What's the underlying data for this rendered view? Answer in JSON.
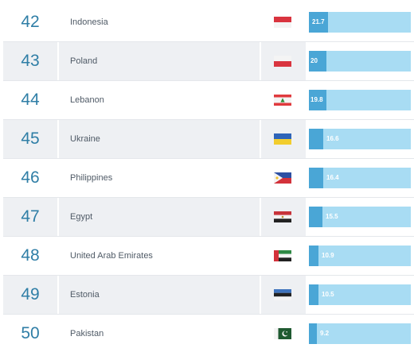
{
  "table": {
    "max_value": 115,
    "rows": [
      {
        "rank": "42",
        "country": "Indonesia",
        "flag": "indonesia-flag-icon",
        "value": "21.7",
        "alt": false
      },
      {
        "rank": "43",
        "country": "Poland",
        "flag": "poland-flag-icon",
        "value": "20",
        "alt": true
      },
      {
        "rank": "44",
        "country": "Lebanon",
        "flag": "lebanon-flag-icon",
        "value": "19.8",
        "alt": false
      },
      {
        "rank": "45",
        "country": "Ukraine",
        "flag": "ukraine-flag-icon",
        "value": "16.6",
        "alt": true
      },
      {
        "rank": "46",
        "country": "Philippines",
        "flag": "philippines-flag-icon",
        "value": "16.4",
        "alt": false
      },
      {
        "rank": "47",
        "country": "Egypt",
        "flag": "egypt-flag-icon",
        "value": "15.5",
        "alt": true
      },
      {
        "rank": "48",
        "country": "United Arab Emirates",
        "flag": "uae-flag-icon",
        "value": "10.9",
        "alt": false
      },
      {
        "rank": "49",
        "country": "Estonia",
        "flag": "estonia-flag-icon",
        "value": "10.5",
        "alt": true
      },
      {
        "rank": "50",
        "country": "Pakistan",
        "flag": "pakistan-flag-icon",
        "value": "9.2",
        "alt": false
      }
    ]
  },
  "colors": {
    "bar_track": "#a8dcf3",
    "bar_fill": "#4aa6d6",
    "rank_text": "#2f7ea6",
    "alt_row_bg": "#eef0f3"
  }
}
